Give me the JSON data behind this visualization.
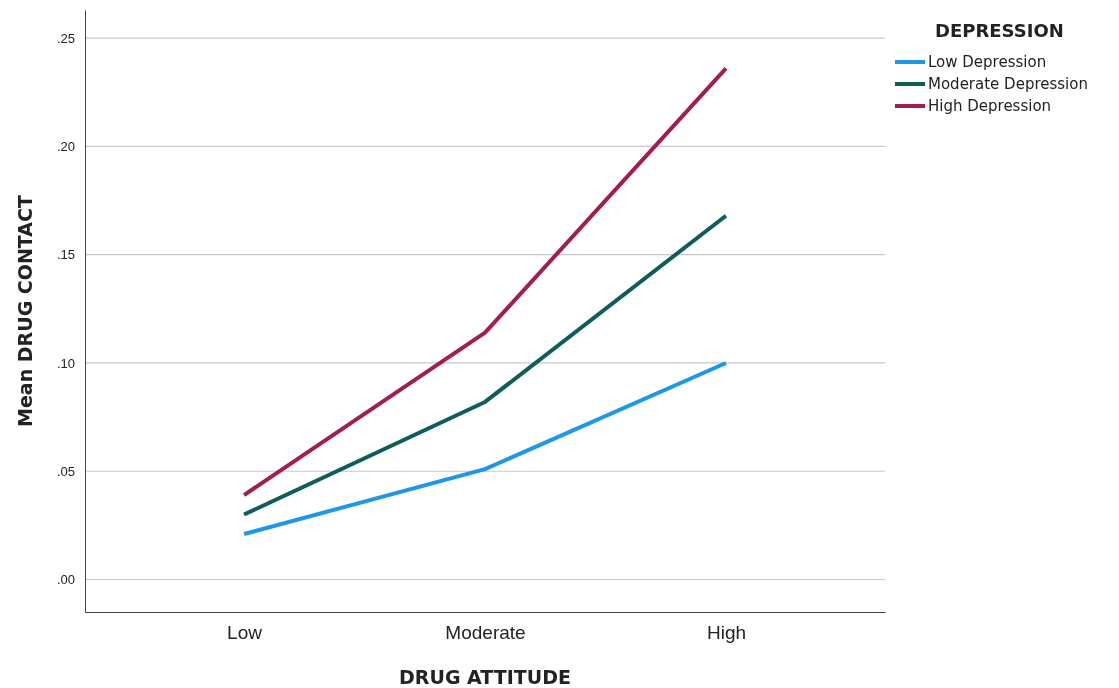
{
  "chart_data": {
    "type": "line",
    "xlabel": "DRUG ATTITUDE",
    "ylabel": "Mean DRUG CONTACT",
    "legend_title": "DEPRESSION",
    "categories": [
      "Low",
      "Moderate",
      "High"
    ],
    "series": [
      {
        "name": "Low Depression",
        "color": "#1f97e8",
        "values": [
          0.021,
          0.051,
          0.1
        ]
      },
      {
        "name": "Moderate Depression",
        "color": "#0e5d5a",
        "values": [
          0.03,
          0.082,
          0.168
        ]
      },
      {
        "name": "High Depression",
        "color": "#a11d52",
        "values": [
          0.039,
          0.114,
          0.236
        ]
      }
    ],
    "ylim": [
      -0.015,
      0.263
    ],
    "yticks": [
      {
        "value": 0,
        "label": ".00"
      },
      {
        "value": 0.05,
        "label": ".05"
      },
      {
        "value": 0.1,
        "label": ".10"
      },
      {
        "value": 0.15,
        "label": ".15"
      },
      {
        "value": 0.2,
        "label": ".20"
      },
      {
        "value": 0.25,
        "label": ".25"
      }
    ],
    "grid": "y",
    "legend": "top right",
    "marker": "none",
    "line_style": "solid"
  }
}
